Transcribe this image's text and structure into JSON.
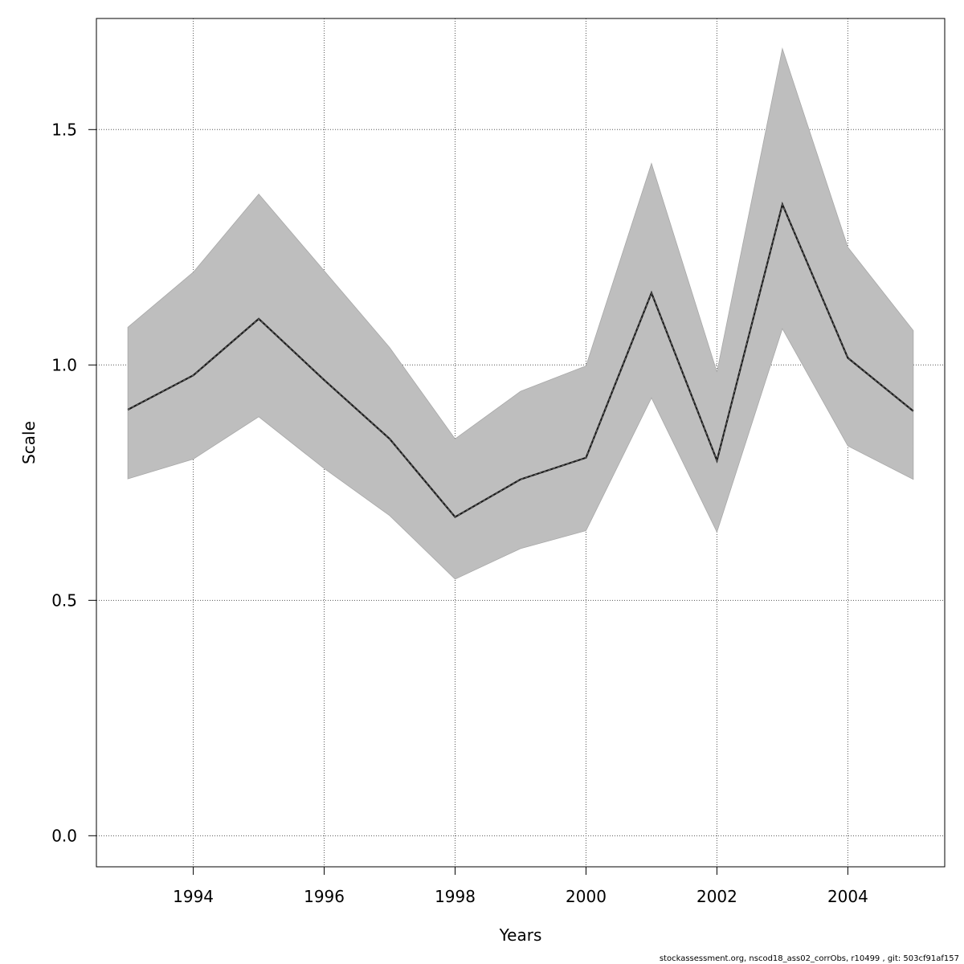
{
  "chart_data": {
    "type": "line",
    "title": "",
    "xlabel": "Years",
    "ylabel": "Scale",
    "xlim": [
      1992.52,
      2005.48
    ],
    "ylim": [
      -0.066,
      1.736
    ],
    "x_ticks": [
      1994,
      1996,
      1998,
      2000,
      2002,
      2004
    ],
    "x_tick_labels": [
      "1994",
      "1996",
      "1998",
      "2000",
      "2002",
      "2004"
    ],
    "y_ticks": [
      0.0,
      0.5,
      1.0,
      1.5
    ],
    "y_tick_labels": [
      "0.0",
      "0.5",
      "1.0",
      "1.5"
    ],
    "grid": true,
    "series": [
      {
        "x": [
          1993,
          1994,
          1995,
          1996,
          1997,
          1998,
          1999,
          2000,
          2001,
          2002,
          2003,
          2004,
          2005
        ],
        "values": [
          0.905,
          0.978,
          1.098,
          0.968,
          0.843,
          0.677,
          0.757,
          0.803,
          1.153,
          0.797,
          1.341,
          1.015,
          0.902
        ],
        "lower": [
          0.758,
          0.8,
          0.89,
          0.78,
          0.68,
          0.545,
          0.61,
          0.648,
          0.93,
          0.645,
          1.077,
          0.828,
          0.757
        ],
        "upper": [
          1.08,
          1.197,
          1.363,
          1.2,
          1.037,
          0.843,
          0.944,
          0.998,
          1.428,
          0.985,
          1.672,
          1.25,
          1.073
        ],
        "line_color": "#1a1a1a",
        "band_color": "#bebebe"
      }
    ]
  },
  "footer": "stockassessment.org, nscod18_ass02_corrObs, r10499 , git: 503cf91af157"
}
